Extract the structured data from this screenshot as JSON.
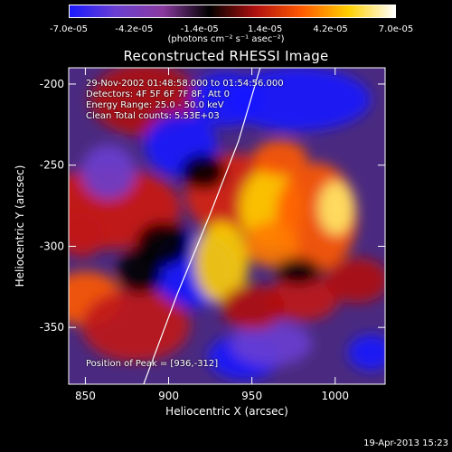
{
  "colorbar": {
    "ticks": [
      "-7.0e-05",
      "-4.2e-05",
      "-1.4e-05",
      "1.4e-05",
      "4.2e-05",
      "7.0e-05"
    ],
    "units": "(photons cm⁻² s⁻¹ asec⁻²)",
    "colors": [
      "#1a1aff",
      "#6a3fd0",
      "#8a3aa0",
      "#000000",
      "#b01010",
      "#ff5a00",
      "#ffd000",
      "#ffffff"
    ]
  },
  "title": "Reconstructed RHESSI Image",
  "annotations": {
    "time": "29-Nov-2002 01:48:58.000 to 01:54:56.000",
    "detectors": "Detectors: 4F 5F 6F 7F 8F, Att 0",
    "energy": "Energy Range: 25.0 - 50.0 keV",
    "clean": "Clean    Total counts: 5.53E+03",
    "peak": "Position of Peak = [936,-312]"
  },
  "footer": "19-Apr-2013 15:23",
  "chart_data": {
    "type": "heatmap",
    "title": "Reconstructed RHESSI Image",
    "xlabel": "Heliocentric X (arcsec)",
    "ylabel": "Heliocentric Y (arcsec)",
    "xlim": [
      840,
      1030
    ],
    "ylim": [
      -385,
      -190
    ],
    "xticks": [
      850,
      900,
      950,
      1000
    ],
    "yticks": [
      -200,
      -250,
      -300,
      -350
    ],
    "xtick_labels": [
      "850",
      "900",
      "950",
      "1000"
    ],
    "ytick_labels": [
      "-200",
      "-250",
      "-300",
      "-350"
    ],
    "color_range": [
      -7e-05,
      7e-05
    ],
    "peak_position": [
      936,
      -312
    ],
    "limb_curve": [
      [
        885,
        -385
      ],
      [
        905,
        -330
      ],
      [
        925,
        -280
      ],
      [
        942,
        -235
      ],
      [
        955,
        -190
      ]
    ]
  }
}
